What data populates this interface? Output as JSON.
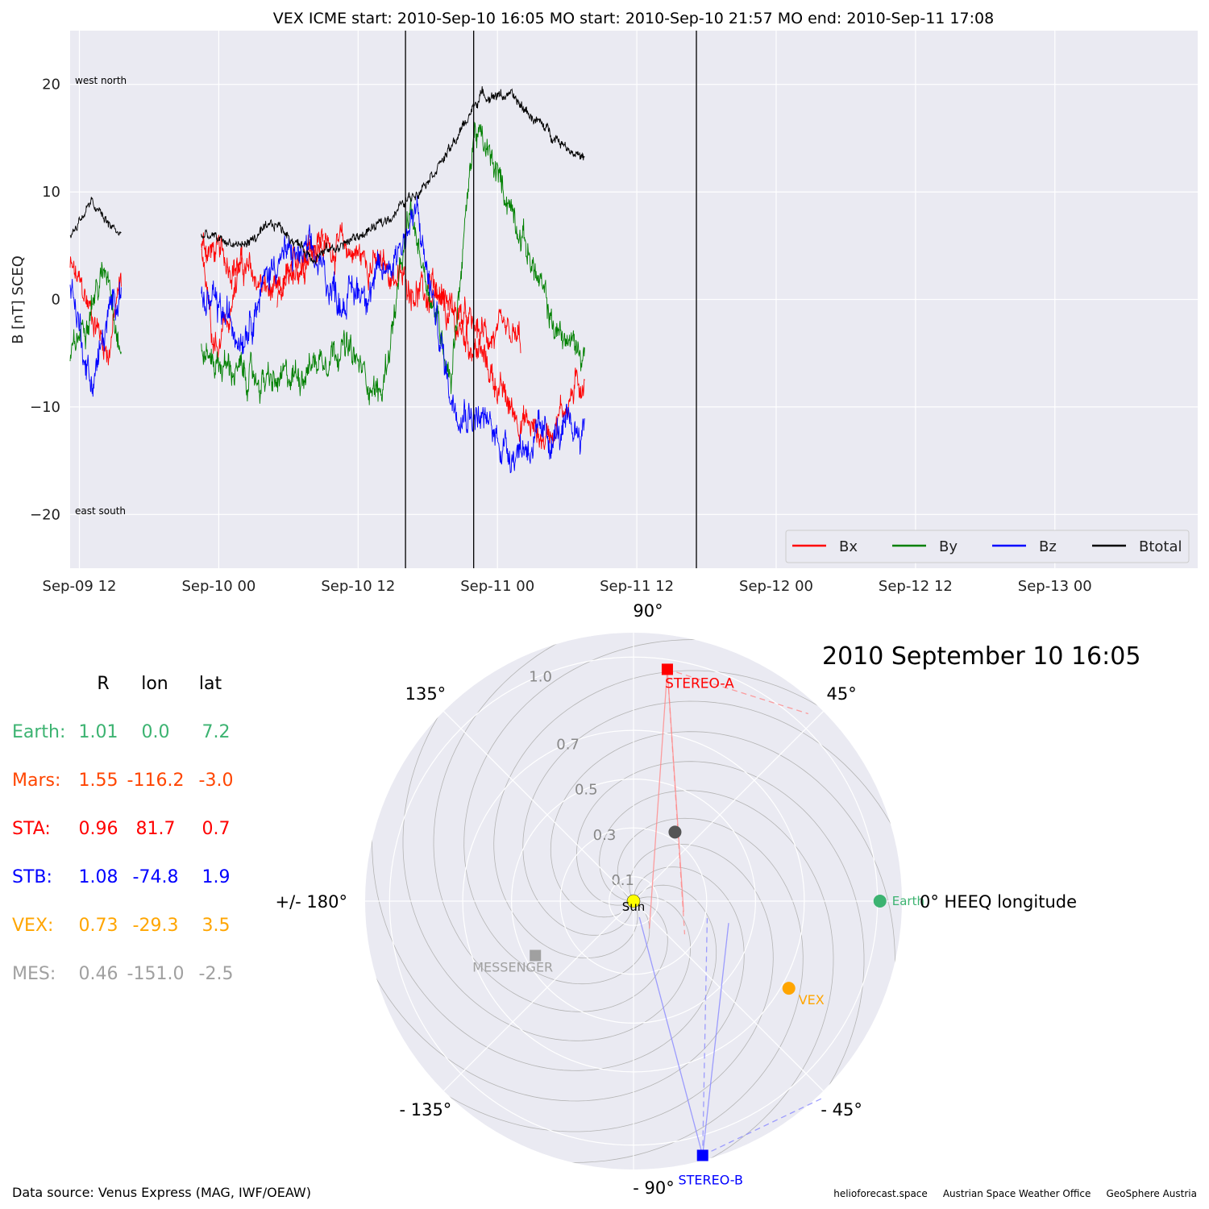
{
  "chart_data": [
    {
      "type": "line",
      "title": "VEX    ICME start: 2010-Sep-10 16:05   MO start: 2010-Sep-10 21:57   MO end: 2010-Sep-11 17:08",
      "ylabel": "B [nT] SCEQ",
      "xlabel": "",
      "ylim": [
        -25,
        25
      ],
      "x_range_hours": [
        -12.8,
        84.3
      ],
      "x_ref": "Sep-10 00",
      "xtick_labels": [
        "Sep-09 12",
        "Sep-10 00",
        "Sep-10 12",
        "Sep-11 00",
        "Sep-11 12",
        "Sep-12 00",
        "Sep-12 12",
        "Sep-13 00"
      ],
      "xtick_hours": [
        -12,
        0,
        12,
        24,
        36,
        48,
        60,
        72
      ],
      "yticks": [
        -20,
        -10,
        0,
        10,
        20
      ],
      "ytick_labels": [
        "−20",
        "−10",
        "0",
        "10",
        "20"
      ],
      "grid": true,
      "legend_position": "bottom-right",
      "event_lines_hours": [
        16.08,
        21.95,
        41.13
      ],
      "annotations": {
        "top_left": "west    north",
        "bottom_left": "east    south"
      },
      "series": [
        {
          "name": "Bx",
          "color": "#ff0000",
          "noise": 1.4,
          "segments": [
            {
              "t": [
                -12.8,
                -11,
                -9.5,
                -8.4
              ],
              "v": [
                3,
                -1,
                -5,
                2
              ]
            },
            {
              "t": [
                -1.5,
                2,
                5,
                8,
                10.5,
                14,
                17,
                20,
                22.5,
                25,
                28,
                31.5
              ],
              "v": [
                5,
                3,
                0,
                5,
                5,
                3,
                1,
                -2,
                -5,
                -10,
                -13,
                -7
              ]
            },
            {
              "t": [
                18.0,
                22.0,
                26.0
              ],
              "v": [
                2,
                -3,
                -4
              ]
            },
            {
              "t": [
                -1.5,
                -0.5,
                0.0,
                2.0
              ],
              "v": [
                4,
                -4,
                -5,
                3
              ]
            },
            {
              "t": [
                5.0,
                7.0,
                9.0
              ],
              "v": [
                0,
                4,
                6
              ]
            }
          ]
        },
        {
          "name": "By",
          "color": "#008000",
          "noise": 1.4,
          "segments": [
            {
              "t": [
                -12.8,
                -11,
                -9.5,
                -8.4
              ],
              "v": [
                -6,
                0,
                3,
                -5
              ]
            },
            {
              "t": [
                -1.5,
                2,
                5,
                8,
                10.5,
                14,
                16.5,
                20,
                22,
                25.5,
                29,
                31.5
              ],
              "v": [
                -5,
                -7,
                -8,
                -6,
                -4,
                -9,
                8,
                -7,
                16,
                8,
                -3,
                -5
              ]
            }
          ]
        },
        {
          "name": "Bz",
          "color": "#0000ff",
          "noise": 1.6,
          "segments": [
            {
              "t": [
                -12.8,
                -11,
                -9.5,
                -8.4
              ],
              "v": [
                2,
                -8,
                -2,
                2
              ]
            },
            {
              "t": [
                -1.5,
                2,
                5,
                8,
                10.5,
                14,
                17,
                20,
                22.5,
                25,
                28,
                31.5
              ],
              "v": [
                0,
                -3,
                4,
                4,
                0,
                2,
                8,
                -9,
                -11,
                -14,
                -13,
                -12
              ]
            }
          ]
        },
        {
          "name": "Btotal",
          "color": "#000000",
          "noise": 0.5,
          "segments": [
            {
              "t": [
                -12.8,
                -11,
                -9.5,
                -8.4
              ],
              "v": [
                6,
                9,
                7,
                6
              ]
            },
            {
              "t": [
                -1.5,
                2,
                5,
                8,
                10.5,
                14,
                17,
                20,
                22.5,
                25,
                28,
                31.5
              ],
              "v": [
                6,
                5,
                7,
                4,
                5,
                7,
                10,
                14,
                19,
                19,
                16,
                13
              ]
            }
          ]
        }
      ]
    },
    {
      "type": "scatter",
      "title": "2010 September 10  16:05",
      "projection": "polar",
      "rlim": [
        0,
        1.1
      ],
      "r_tick_labels": [
        "0.1",
        "0.3",
        "0.5",
        "0.7",
        "1.0"
      ],
      "r_ticks": [
        0.1,
        0.3,
        0.5,
        0.7,
        1.0
      ],
      "angle_labels": [
        {
          "deg": 0,
          "text": "0° HEEQ longitude"
        },
        {
          "deg": 45,
          "text": "45°"
        },
        {
          "deg": 90,
          "text": "90°"
        },
        {
          "deg": 135,
          "text": "135°"
        },
        {
          "deg": 180,
          "text": "+/- 180°"
        },
        {
          "deg": -135,
          "text": "- 135°"
        },
        {
          "deg": -90,
          "text": "- 90°"
        },
        {
          "deg": -45,
          "text": "- 45°"
        }
      ],
      "bodies": [
        {
          "name": "Sun",
          "r": 0.0,
          "lon": 0.0,
          "color": "#ffff00",
          "marker": "circle"
        },
        {
          "name": "Earth",
          "r": 1.01,
          "lon": 0.0,
          "color": "#3cb371",
          "marker": "circle"
        },
        {
          "name": "",
          "r": 0.33,
          "lon": 59.0,
          "color": "#555555",
          "marker": "circle"
        },
        {
          "name": "VEX",
          "r": 0.73,
          "lon": -29.3,
          "color": "#ffa500",
          "marker": "circle"
        },
        {
          "name": "STEREO-A",
          "r": 0.96,
          "lon": 81.7,
          "color": "#ff0000",
          "marker": "square"
        },
        {
          "name": "STEREO-B",
          "r": 1.08,
          "lon": -74.8,
          "color": "#0000ff",
          "marker": "square"
        },
        {
          "name": "MESSENGER",
          "r": 0.46,
          "lon": -151.0,
          "color": "#a0a0a0",
          "marker": "square"
        }
      ]
    }
  ],
  "positions_table": {
    "headers": [
      "R",
      "lon",
      "lat"
    ],
    "rows": [
      {
        "label": "Earth:",
        "R": "1.01",
        "lon": "0.0",
        "lat": "7.2",
        "color": "#3cb371"
      },
      {
        "label": "Mars:",
        "R": "1.55",
        "lon": "-116.2",
        "lat": "-3.0",
        "color": "#ff4500"
      },
      {
        "label": "STA:",
        "R": "0.96",
        "lon": "81.7",
        "lat": "0.7",
        "color": "#ff0000"
      },
      {
        "label": "STB:",
        "R": "1.08",
        "lon": "-74.8",
        "lat": "1.9",
        "color": "#0000ff"
      },
      {
        "label": "VEX:",
        "R": "0.73",
        "lon": "-29.3",
        "lat": "3.5",
        "color": "#ffa500"
      },
      {
        "label": "MES:",
        "R": "0.46",
        "lon": "-151.0",
        "lat": "-2.5",
        "color": "#a0a0a0"
      }
    ]
  },
  "footer": {
    "source": "Data source: Venus Express (MAG, IWF/OEAW)",
    "credits": "helioforecast.space     Austrian Space Weather Office     GeoSphere Austria"
  }
}
